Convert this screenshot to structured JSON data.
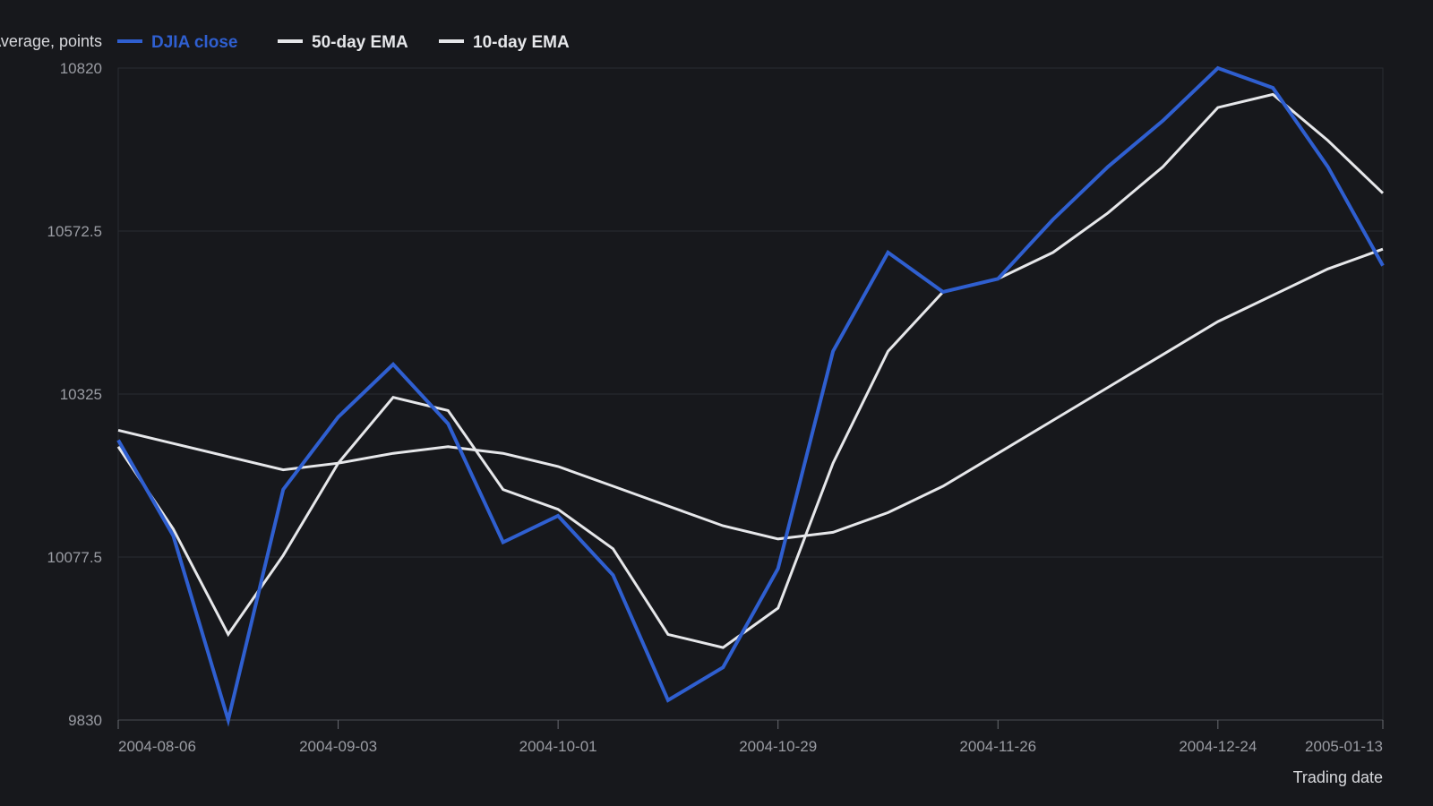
{
  "chart_data": {
    "type": "line",
    "ylabel": "Dow Jones Industrial Average, points",
    "xlabel": "Trading date",
    "ylim": [
      9830,
      10820
    ],
    "yticks": [
      "10820",
      "10572.5",
      "10325",
      "10077.5",
      "9830"
    ],
    "ytick_values": [
      10820,
      10572.5,
      10325,
      10077.5,
      9830
    ],
    "xticks": [
      "2004-08-06",
      "2004-09-03",
      "2004-10-01",
      "2004-10-29",
      "2004-11-26",
      "2004-12-24",
      "2005-01-13"
    ],
    "x": [
      "2004-08-06",
      "2004-08-13",
      "2004-08-20",
      "2004-08-27",
      "2004-09-03",
      "2004-09-10",
      "2004-09-17",
      "2004-09-24",
      "2004-10-01",
      "2004-10-08",
      "2004-10-15",
      "2004-10-22",
      "2004-10-29",
      "2004-11-05",
      "2004-11-12",
      "2004-11-19",
      "2004-11-26",
      "2004-12-03",
      "2004-12-10",
      "2004-12-17",
      "2004-12-24",
      "2004-12-31",
      "2005-01-07",
      "2005-01-13"
    ],
    "grid": true,
    "legend_position": "top",
    "series": [
      {
        "name": "DJIA close",
        "color": "#2f5fd0",
        "values": [
          10255,
          10110,
          9830,
          10180,
          10290,
          10370,
          10280,
          10100,
          10140,
          10050,
          9860,
          9910,
          10060,
          10390,
          10540,
          10480,
          10500,
          10590,
          10670,
          10740,
          10820,
          10790,
          10670,
          10520
        ]
      },
      {
        "name": "50-day EMA",
        "color": "#e6e7ea",
        "values": [
          10270,
          10250,
          10230,
          10210,
          10220,
          10235,
          10245,
          10235,
          10215,
          10185,
          10155,
          10125,
          10105,
          10115,
          10145,
          10185,
          10235,
          10285,
          10335,
          10385,
          10435,
          10475,
          10515,
          10545
        ]
      },
      {
        "name": "10-day EMA",
        "color": "#e6e7ea",
        "values": [
          10245,
          10120,
          9960,
          10080,
          10220,
          10320,
          10300,
          10180,
          10150,
          10090,
          9960,
          9940,
          10000,
          10220,
          10390,
          10480,
          10500,
          10540,
          10600,
          10670,
          10760,
          10780,
          10710,
          10630
        ]
      }
    ]
  }
}
